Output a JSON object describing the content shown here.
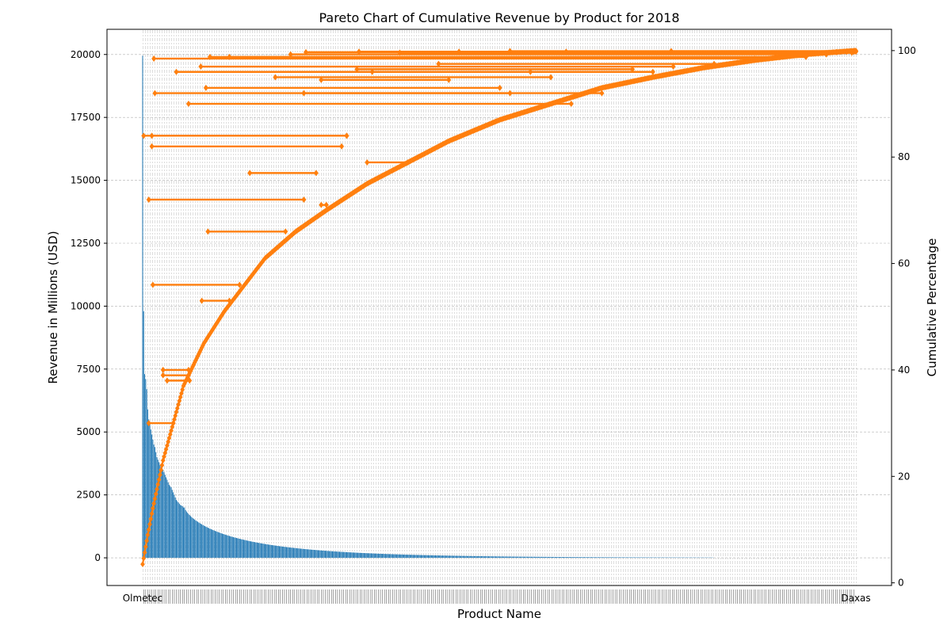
{
  "chart_data": {
    "type": "bar+line",
    "title": "Pareto Chart of Cumulative Revenue by Product for 2018",
    "xlabel": "Product Name",
    "ylabel_left": "Revenue in Millions (USD)",
    "ylabel_right": "Cumulative Percentage",
    "ylim_left": [
      -1100,
      21000
    ],
    "ylim_right": [
      -0.5,
      104
    ],
    "yticks_left": [
      0,
      2500,
      5000,
      7500,
      10000,
      12500,
      15000,
      17500,
      20000
    ],
    "yticks_right": [
      0,
      20,
      40,
      60,
      80,
      100
    ],
    "grid": true,
    "x_tick_labels_visible": [
      "Olmetec",
      "Daxas"
    ],
    "product_count": 700,
    "bars_with_revenue": 560,
    "bar_color": "#1f77b4",
    "line_color": "#ff7f0e",
    "series": [
      {
        "kind": "bar",
        "estimated_values_top": [
          19950,
          9800,
          7300,
          7100,
          6700,
          5900,
          5500,
          5300,
          5100,
          4900,
          4700,
          4500,
          4400,
          4200,
          4000,
          3900,
          3800,
          3700,
          3600,
          3600,
          3500,
          3400,
          3300,
          3200,
          3100,
          3000,
          2900,
          2850,
          2800,
          2700,
          2600,
          2500,
          2400,
          2300,
          2250,
          2200,
          2150,
          2100,
          2080,
          2050,
          2000
        ],
        "estimated_tail_start": 2000,
        "estimated_tail_end": 10
      },
      {
        "kind": "cumulative-line",
        "marker": "diamond",
        "monotonic_curve_points_pct": [
          [
            0,
            3.5
          ],
          [
            5,
            9
          ],
          [
            10,
            14
          ],
          [
            20,
            23
          ],
          [
            30,
            30
          ],
          [
            40,
            37
          ],
          [
            50,
            41
          ],
          [
            60,
            45
          ],
          [
            80,
            51
          ],
          [
            100,
            56
          ],
          [
            120,
            61
          ],
          [
            150,
            66
          ],
          [
            180,
            70
          ],
          [
            220,
            75
          ],
          [
            260,
            79
          ],
          [
            300,
            83
          ],
          [
            350,
            87
          ],
          [
            400,
            90
          ],
          [
            450,
            93
          ],
          [
            500,
            95
          ],
          [
            550,
            96.8
          ],
          [
            600,
            98.2
          ],
          [
            650,
            99.3
          ],
          [
            699,
            100
          ]
        ],
        "outlier_segments_pct": [
          {
            "x_start": 1,
            "x_end": 200,
            "pct": 84
          },
          {
            "x_start": 9,
            "x_end": 200,
            "pct": 84
          },
          {
            "x_start": 9,
            "x_end": 195,
            "pct": 82
          },
          {
            "x_start": 6,
            "x_end": 158,
            "pct": 72
          },
          {
            "x_start": 105,
            "x_end": 170,
            "pct": 77
          },
          {
            "x_start": 220,
            "x_end": 260,
            "pct": 79
          },
          {
            "x_start": 175,
            "x_end": 180,
            "pct": 71
          },
          {
            "x_start": 64,
            "x_end": 140,
            "pct": 66
          },
          {
            "x_start": 10,
            "x_end": 95,
            "pct": 56
          },
          {
            "x_start": 58,
            "x_end": 85,
            "pct": 53
          },
          {
            "x_start": 20,
            "x_end": 45,
            "pct": 40
          },
          {
            "x_start": 20,
            "x_end": 45,
            "pct": 39
          },
          {
            "x_start": 24,
            "x_end": 46,
            "pct": 38
          },
          {
            "x_start": 6,
            "x_end": 30,
            "pct": 30
          },
          {
            "x_start": 12,
            "x_end": 450,
            "pct": 92
          },
          {
            "x_start": 158,
            "x_end": 360,
            "pct": 92
          },
          {
            "x_start": 45,
            "x_end": 420,
            "pct": 90
          },
          {
            "x_start": 62,
            "x_end": 350,
            "pct": 93
          },
          {
            "x_start": 130,
            "x_end": 400,
            "pct": 95
          },
          {
            "x_start": 175,
            "x_end": 300,
            "pct": 94.5
          },
          {
            "x_start": 33,
            "x_end": 380,
            "pct": 96
          },
          {
            "x_start": 210,
            "x_end": 480,
            "pct": 96.5
          },
          {
            "x_start": 225,
            "x_end": 500,
            "pct": 96
          },
          {
            "x_start": 57,
            "x_end": 520,
            "pct": 97
          },
          {
            "x_start": 290,
            "x_end": 560,
            "pct": 97.5
          },
          {
            "x_start": 11,
            "x_end": 600,
            "pct": 98.5
          },
          {
            "x_start": 66,
            "x_end": 620,
            "pct": 98.8
          },
          {
            "x_start": 85,
            "x_end": 650,
            "pct": 98.8
          },
          {
            "x_start": 145,
            "x_end": 670,
            "pct": 99.3
          },
          {
            "x_start": 160,
            "x_end": 680,
            "pct": 99.7
          },
          {
            "x_start": 212,
            "x_end": 690,
            "pct": 99.8
          },
          {
            "x_start": 252,
            "x_end": 695,
            "pct": 99.6
          },
          {
            "x_start": 310,
            "x_end": 697,
            "pct": 99.8
          },
          {
            "x_start": 360,
            "x_end": 698,
            "pct": 99.9
          },
          {
            "x_start": 415,
            "x_end": 699,
            "pct": 99.8
          },
          {
            "x_start": 518,
            "x_end": 699,
            "pct": 99.9
          }
        ]
      }
    ]
  }
}
